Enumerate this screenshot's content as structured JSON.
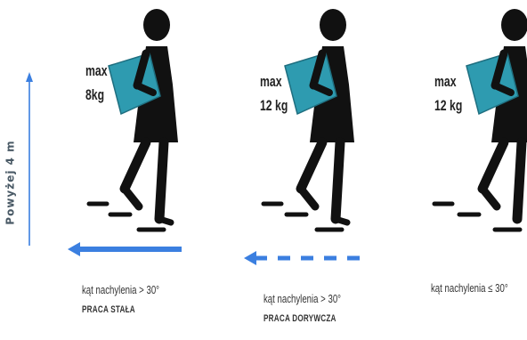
{
  "height_label": "Powyżej 4 m",
  "colors": {
    "arrow": "#3b7fe0",
    "box": "#2e9bb0",
    "figure": "#111111"
  },
  "panels": [
    {
      "load_label": "max",
      "load_value": "8kg",
      "angle_text": "kąt nachylenia > 30°",
      "work_type": "PRACA STAŁA",
      "arrow_style": "solid"
    },
    {
      "load_label": "max",
      "load_value": "12 kg",
      "angle_text": "kąt nachylenia > 30°",
      "work_type": "PRACA DORYWCZA",
      "arrow_style": "dashed"
    },
    {
      "load_label": "max",
      "load_value": "12 kg",
      "angle_text": "kąt nachylenia ≤ 30°"
    }
  ]
}
